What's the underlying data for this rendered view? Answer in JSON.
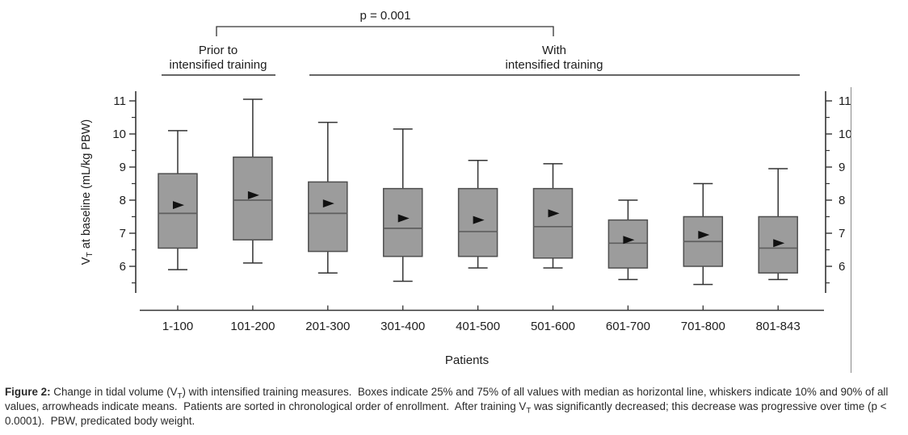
{
  "figure": {
    "p_value_label": "p = 0.001",
    "groups": [
      {
        "label_line1": "Prior to",
        "label_line2": "intensified training",
        "categories": [
          "1-100",
          "101-200"
        ]
      },
      {
        "label_line1": "With",
        "label_line2": "intensified training",
        "categories": [
          "201-300",
          "301-400",
          "401-500",
          "501-600",
          "601-700",
          "701-800",
          "801-843"
        ]
      }
    ],
    "colors": {
      "box_fill": "#9c9c9c",
      "box_border": "#4f4f4f",
      "median_line": "#5e5e5e",
      "whisker_line": "#333333",
      "axis_line": "#333333",
      "mean_marker": "#111111",
      "stray_border": "#8a8a8a",
      "text": "#1d1d1d"
    }
  },
  "chart_data": {
    "type": "boxplot",
    "title": "p = 0.001",
    "xlabel": "Patients",
    "ylabel": "VT at baseline (mL/kg PBW)",
    "ylabel_parts": {
      "pre": "V",
      "sub": "T",
      "rest": " at baseline (mL/kg PBW)"
    },
    "ylim": [
      5.2,
      11.35
    ],
    "yticks": [
      6,
      7,
      8,
      9,
      10,
      11
    ],
    "minor_yticks": [
      5.5,
      6.5,
      7.5,
      8.5,
      9.5,
      10.5
    ],
    "right_axis_mirrored": true,
    "grid": false,
    "categories": [
      "1-100",
      "101-200",
      "201-300",
      "301-400",
      "401-500",
      "501-600",
      "601-700",
      "701-800",
      "801-843"
    ],
    "boxes": [
      {
        "label": "1-100",
        "p10": 5.9,
        "p25": 6.55,
        "median": 7.6,
        "mean": 7.85,
        "p75": 8.8,
        "p90": 10.1
      },
      {
        "label": "101-200",
        "p10": 6.1,
        "p25": 6.8,
        "median": 8.0,
        "mean": 8.15,
        "p75": 9.3,
        "p90": 11.05
      },
      {
        "label": "201-300",
        "p10": 5.8,
        "p25": 6.45,
        "median": 7.6,
        "mean": 7.9,
        "p75": 8.55,
        "p90": 10.35
      },
      {
        "label": "301-400",
        "p10": 5.55,
        "p25": 6.3,
        "median": 7.15,
        "mean": 7.45,
        "p75": 8.35,
        "p90": 10.15
      },
      {
        "label": "401-500",
        "p10": 5.95,
        "p25": 6.3,
        "median": 7.05,
        "mean": 7.4,
        "p75": 8.35,
        "p90": 9.2
      },
      {
        "label": "501-600",
        "p10": 5.95,
        "p25": 6.25,
        "median": 7.2,
        "mean": 7.6,
        "p75": 8.35,
        "p90": 9.1
      },
      {
        "label": "601-700",
        "p10": 5.6,
        "p25": 5.95,
        "median": 6.7,
        "mean": 6.8,
        "p75": 7.4,
        "p90": 8.0
      },
      {
        "label": "701-800",
        "p10": 5.45,
        "p25": 6.0,
        "median": 6.75,
        "mean": 6.95,
        "p75": 7.5,
        "p90": 8.5
      },
      {
        "label": "801-843",
        "p10": 5.6,
        "p25": 5.8,
        "median": 6.55,
        "mean": 6.7,
        "p75": 7.5,
        "p90": 8.95
      }
    ]
  },
  "caption": {
    "segments": [
      {
        "text": "Figure 2:",
        "bold": true
      },
      {
        "text": " Change in tidal volume (V"
      },
      {
        "text": "T",
        "sub": true
      },
      {
        "text": ") with intensified training measures.  Boxes indicate 25% and 75% of all values with median as horizontal line, whiskers indicate 10% and 90% of all values, arrowheads indicate means.  Patients are sorted in chronological order of enrollment.  After training V"
      },
      {
        "text": "T",
        "sub": true
      },
      {
        "text": " was significantly decreased; this decrease was progressive over time (p < 0.0001).  PBW, predicated body weight."
      }
    ]
  }
}
